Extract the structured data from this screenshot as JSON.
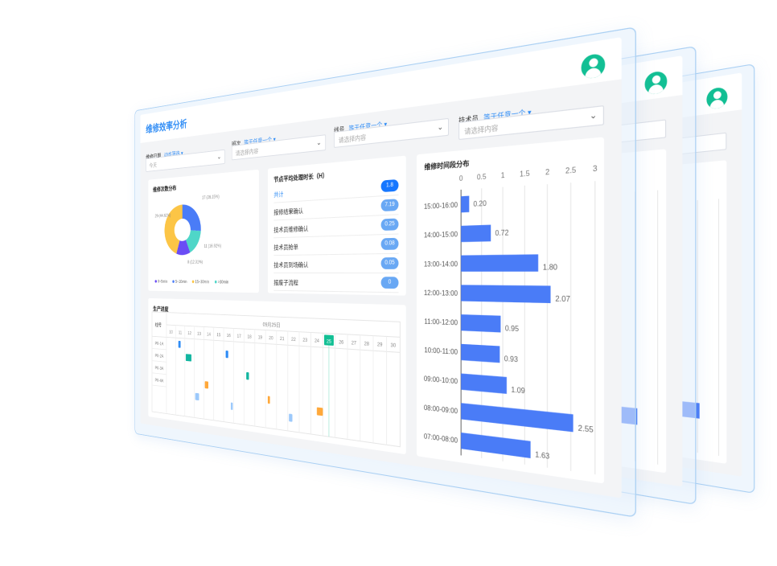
{
  "header": {
    "title": "维修效率分析",
    "avatar_color": "#12bf94"
  },
  "filters": [
    {
      "label": "维修日期",
      "operator": "动态筛选 ▾",
      "value": "今天",
      "placeholder": ""
    },
    {
      "label": "班次",
      "operator": "等于任意一个 ▾",
      "value": "",
      "placeholder": "请选择内容"
    },
    {
      "label": "线号",
      "operator": "等于任意一个 ▾",
      "value": "",
      "placeholder": "请选择内容"
    },
    {
      "label": "技术员",
      "operator": "等于任意一个 ▾",
      "value": "",
      "placeholder": "请选择内容"
    }
  ],
  "pie_card": {
    "title": "维修次数分布",
    "slices": [
      {
        "label": "17 (26.15%)",
        "value": 17,
        "legend": "5~10min",
        "color": "#4a7cf7"
      },
      {
        "label": "11 (16.92%)",
        "value": 11,
        "legend": ">30min",
        "color": "#4fd6c8"
      },
      {
        "label": "8 (12.31%)",
        "value": 8,
        "legend": "0~5min",
        "color": "#6a4cf5"
      },
      {
        "label": "29 (44.62%)",
        "value": 29,
        "legend": "15~30min",
        "color": "#fcc546"
      }
    ],
    "legend": [
      {
        "label": "0~5min",
        "color": "#6a4cf5"
      },
      {
        "label": "5~10min",
        "color": "#4a7cf7"
      },
      {
        "label": "15~30min",
        "color": "#fcc546"
      },
      {
        "label": ">30min",
        "color": "#4fd6c8"
      }
    ]
  },
  "node_card": {
    "title": "节点平均处理时长（H）",
    "rows": [
      {
        "label": "共计",
        "value": "1.8",
        "highlight": true
      },
      {
        "label": "报修结果确认",
        "value": "7.19"
      },
      {
        "label": "技术员维修确认",
        "value": "0.25"
      },
      {
        "label": "技术员抢单",
        "value": "0.08"
      },
      {
        "label": "技术员到场确认",
        "value": "0.05"
      },
      {
        "label": "报废子流程",
        "value": "0"
      }
    ]
  },
  "gantt": {
    "title": "生产进度",
    "row_header": "线号",
    "month": "09月25日",
    "days": [
      "10",
      "11",
      "12",
      "13",
      "14",
      "15",
      "16",
      "17",
      "18",
      "19",
      "20",
      "21",
      "22",
      "23",
      "24",
      "25",
      "26",
      "27",
      "28",
      "29",
      "30"
    ],
    "today": "25",
    "rows": [
      "P0-1A",
      "P0-2A",
      "P0-3A",
      "P0-4A"
    ],
    "tasks": [
      {
        "row": 0,
        "day": 11.3,
        "len": 0.25,
        "color": "#2f8cf5"
      },
      {
        "row": 0.5,
        "day": 16.2,
        "len": 0.25,
        "color": "#2f8cf5"
      },
      {
        "row": 1,
        "day": 12.1,
        "len": 0.6,
        "color": "#12b5a0"
      },
      {
        "row": 2,
        "day": 18.2,
        "len": 0.25,
        "color": "#12b5a0"
      },
      {
        "row": 3,
        "day": 14.1,
        "len": 0.35,
        "color": "#ffa83a"
      },
      {
        "row": 3.6,
        "day": 20.2,
        "len": 0.2,
        "color": "#ffa83a"
      },
      {
        "row": 4,
        "day": 13.1,
        "len": 0.4,
        "color": "#9cc9fb"
      },
      {
        "row": 4.4,
        "day": 16.7,
        "len": 0.2,
        "color": "#9cc9fb"
      },
      {
        "row": 4.7,
        "day": 22.1,
        "len": 0.3,
        "color": "#9cc9fb"
      },
      {
        "row": 4,
        "day": 24.5,
        "len": 0.5,
        "color": "#ffa83a"
      }
    ]
  },
  "chart_data": {
    "type": "bar",
    "orientation": "horizontal",
    "title": "维修时间段分布",
    "categories": [
      "15:00-16:00",
      "14:00-15:00",
      "13:00-14:00",
      "12:00-13:00",
      "11:00-12:00",
      "10:00-11:00",
      "09:00-10:00",
      "08:00-09:00",
      "07:00-08:00"
    ],
    "values": [
      0.2,
      0.72,
      1.8,
      2.07,
      0.95,
      0.93,
      1.09,
      2.55,
      1.63
    ],
    "value_labels": [
      "0.20",
      "0.72",
      "1.80",
      "2.07",
      "0.95",
      "0.93",
      "1.09",
      "2.55",
      "1.63"
    ],
    "xticks": [
      "0",
      "0.5",
      "1",
      "1.5",
      "2",
      "2.5",
      "3"
    ],
    "xlim": [
      0,
      3
    ],
    "grid": true,
    "bar_color": "#4a7cf7"
  }
}
